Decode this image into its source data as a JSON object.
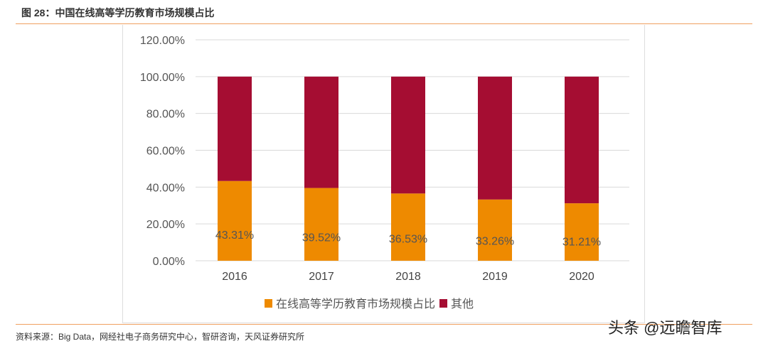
{
  "header": {
    "title": "图 28：中国在线高等学历教育市场规模占比"
  },
  "footer": {
    "source": "资料来源：Big Data，网经社电子商务研究中心，智研咨询，天风证券研究所",
    "watermark": "头条 @远瞻智库"
  },
  "chart_data": {
    "type": "bar",
    "stacked": true,
    "categories": [
      "2016",
      "2017",
      "2018",
      "2019",
      "2020"
    ],
    "series": [
      {
        "name": "在线高等学历教育市场规模占比",
        "values": [
          43.31,
          39.52,
          36.53,
          33.26,
          31.21
        ],
        "labels": [
          "43.31%",
          "39.52%",
          "36.53%",
          "33.26%",
          "31.21%"
        ],
        "color": "#ee8a00"
      },
      {
        "name": "其他",
        "values": [
          56.69,
          60.48,
          63.47,
          66.74,
          68.79
        ],
        "color": "#a50d32"
      }
    ],
    "ylim": [
      0,
      120
    ],
    "yticks": [
      "0.00%",
      "20.00%",
      "40.00%",
      "60.00%",
      "80.00%",
      "100.00%",
      "120.00%"
    ],
    "grid": true,
    "legend": "bottom"
  }
}
